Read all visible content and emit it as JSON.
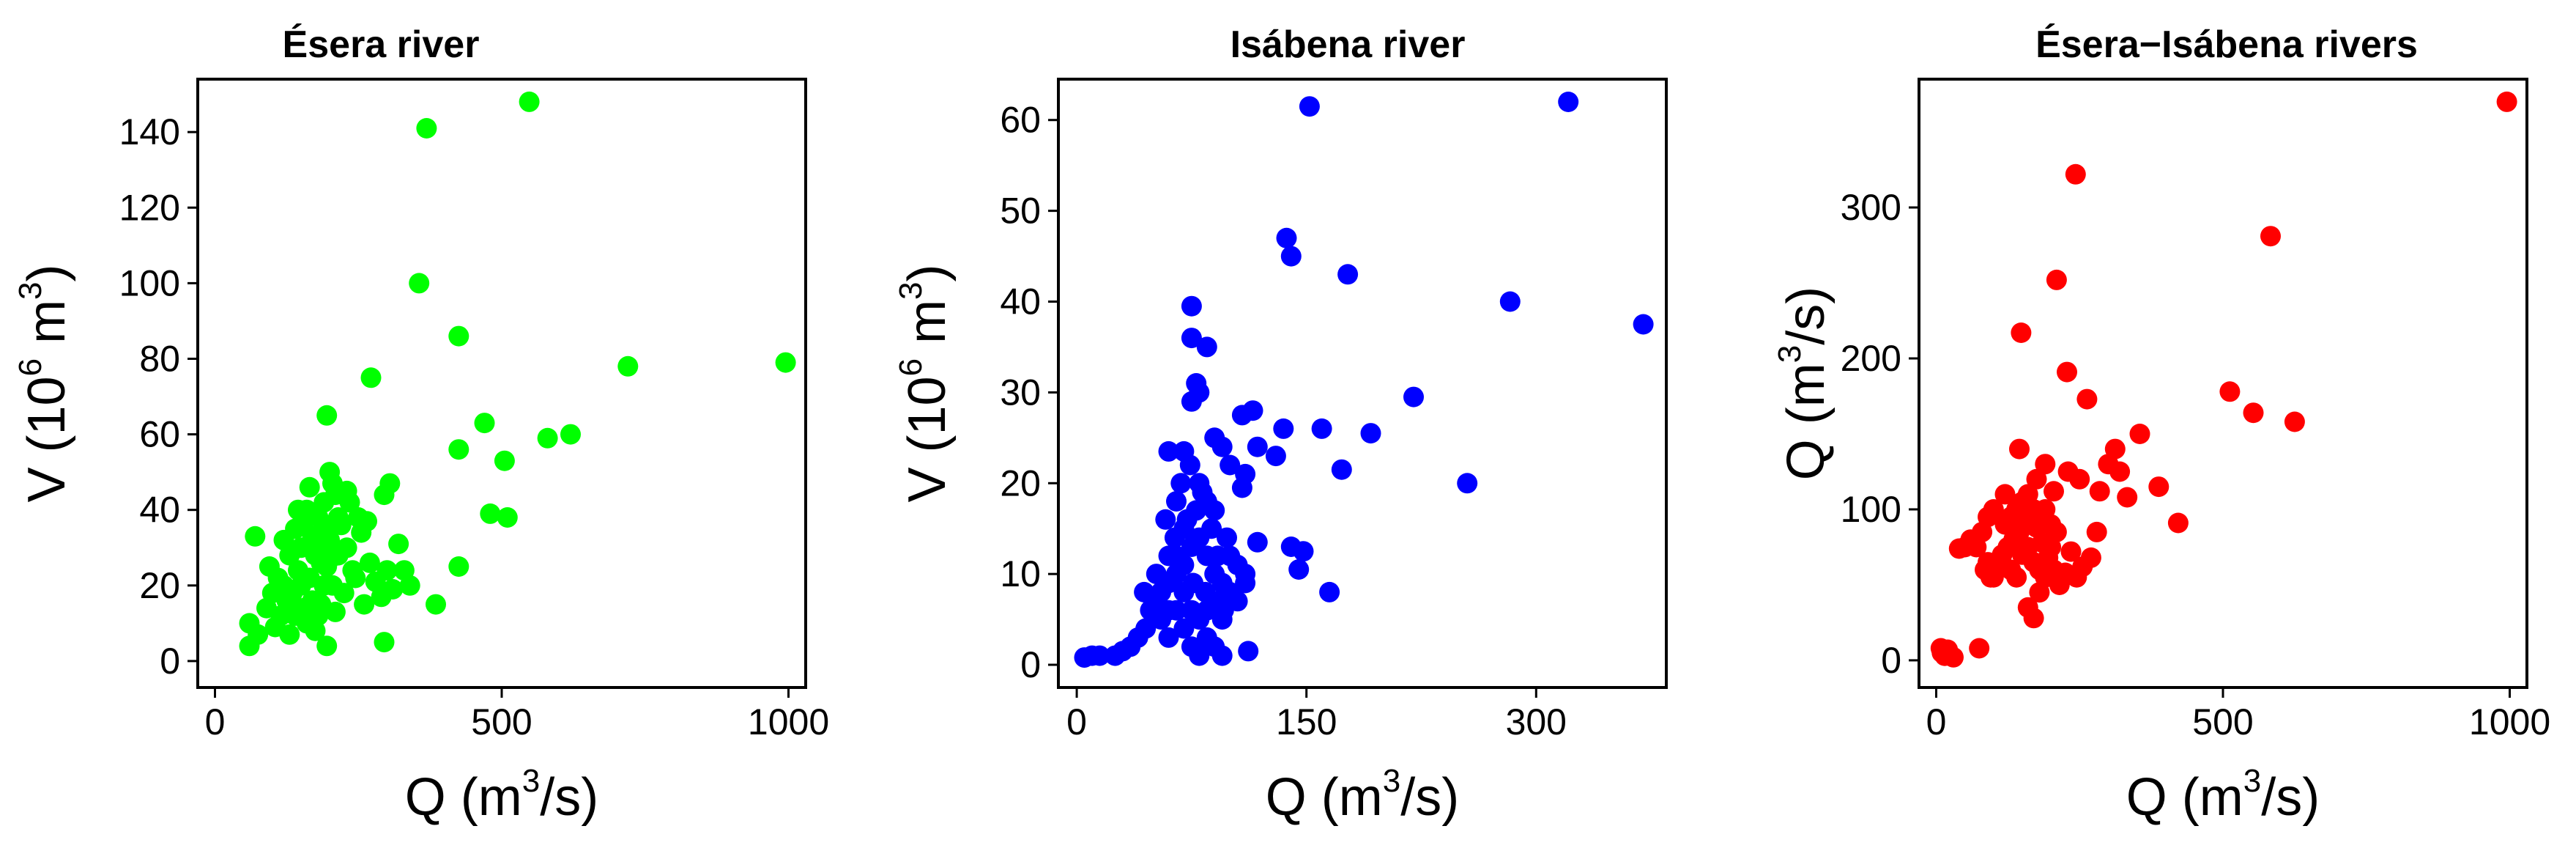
{
  "panels": [
    {
      "title": "Ésera river",
      "xlabel": {
        "pre": "Q (m",
        "sup": "3",
        "post": "/s)"
      },
      "ylabel": {
        "pre": "V (10",
        "sup1": "6",
        "mid": " m",
        "sup2": "3",
        "post": ")"
      }
    },
    {
      "title": "Isábena river",
      "xlabel": {
        "pre": "Q (m",
        "sup": "3",
        "post": "/s)"
      },
      "ylabel": {
        "pre": "V (10",
        "sup1": "6",
        "mid": " m",
        "sup2": "3",
        "post": ")"
      }
    },
    {
      "title": "Ésera−Isábena rivers",
      "xlabel": {
        "pre": "Q (m",
        "sup": "3",
        "post": "/s)"
      },
      "ylabel": {
        "pre": "Q (m",
        "sup1": "3",
        "mid": "",
        "sup2": "",
        "post": "/s)"
      }
    }
  ],
  "chart_data": [
    {
      "type": "scatter",
      "title": "Ésera river",
      "xlabel": "Q (m3/s)",
      "ylabel": "V (10^6 m3)",
      "xlim": [
        -30,
        1030
      ],
      "ylim": [
        -7,
        154
      ],
      "xticks": [
        0,
        500,
        1000
      ],
      "yticks": [
        0,
        20,
        40,
        60,
        80,
        100,
        120,
        140
      ],
      "color": "#00ff00",
      "grid": false,
      "points": [
        [
          548,
          148
        ],
        [
          369,
          141
        ],
        [
          356,
          100
        ],
        [
          425,
          86
        ],
        [
          272,
          75
        ],
        [
          995,
          79
        ],
        [
          720,
          78
        ],
        [
          620,
          60
        ],
        [
          580,
          59
        ],
        [
          470,
          63
        ],
        [
          505,
          53
        ],
        [
          425,
          56
        ],
        [
          480,
          39
        ],
        [
          510,
          38
        ],
        [
          195,
          65
        ],
        [
          200,
          50
        ],
        [
          425,
          25
        ],
        [
          385,
          15
        ],
        [
          305,
          47
        ],
        [
          295,
          44
        ],
        [
          235,
          42
        ],
        [
          250,
          38
        ],
        [
          320,
          31
        ],
        [
          330,
          24
        ],
        [
          340,
          20
        ],
        [
          295,
          5
        ],
        [
          195,
          4
        ],
        [
          70,
          33
        ],
        [
          60,
          10
        ],
        [
          60,
          4
        ],
        [
          75,
          7
        ],
        [
          90,
          14
        ],
        [
          105,
          9
        ],
        [
          115,
          12
        ],
        [
          120,
          20
        ],
        [
          130,
          28
        ],
        [
          135,
          18
        ],
        [
          140,
          35
        ],
        [
          145,
          24
        ],
        [
          150,
          30
        ],
        [
          155,
          14
        ],
        [
          160,
          40
        ],
        [
          165,
          22
        ],
        [
          170,
          33
        ],
        [
          175,
          28
        ],
        [
          180,
          38
        ],
        [
          185,
          15
        ],
        [
          190,
          42
        ],
        [
          195,
          25
        ],
        [
          200,
          32
        ],
        [
          205,
          20
        ],
        [
          210,
          44
        ],
        [
          215,
          28
        ],
        [
          220,
          36
        ],
        [
          225,
          18
        ],
        [
          230,
          30
        ],
        [
          240,
          24
        ],
        [
          245,
          22
        ],
        [
          255,
          34
        ],
        [
          260,
          15
        ],
        [
          270,
          26
        ],
        [
          280,
          21
        ],
        [
          290,
          17
        ],
        [
          300,
          24
        ],
        [
          310,
          19
        ],
        [
          150,
          20
        ],
        [
          160,
          10
        ],
        [
          175,
          8
        ],
        [
          185,
          26
        ],
        [
          190,
          20
        ],
        [
          140,
          12
        ],
        [
          125,
          16
        ],
        [
          110,
          22
        ],
        [
          100,
          18
        ],
        [
          95,
          25
        ],
        [
          165,
          46
        ],
        [
          205,
          47
        ],
        [
          215,
          38
        ],
        [
          170,
          16
        ],
        [
          130,
          7
        ],
        [
          180,
          12
        ],
        [
          195,
          35
        ],
        [
          210,
          13
        ],
        [
          145,
          40
        ],
        [
          230,
          45
        ],
        [
          265,
          37
        ],
        [
          120,
          32
        ],
        [
          155,
          37
        ],
        [
          185,
          30
        ],
        [
          200,
          27
        ]
      ]
    },
    {
      "type": "scatter",
      "title": "Isábena river",
      "xlabel": "Q (m3/s)",
      "ylabel": "V (10^6 m3)",
      "xlim": [
        -12,
        385
      ],
      "ylim": [
        -2.5,
        64.5
      ],
      "xticks": [
        0,
        150,
        300
      ],
      "yticks": [
        0,
        10,
        20,
        30,
        40,
        50,
        60
      ],
      "color": "#0000ff",
      "grid": false,
      "points": [
        [
          152,
          61.5
        ],
        [
          321,
          62
        ],
        [
          137,
          47
        ],
        [
          140,
          45
        ],
        [
          177,
          43
        ],
        [
          283,
          40
        ],
        [
          370,
          37.5
        ],
        [
          75,
          39.5
        ],
        [
          220,
          29.5
        ],
        [
          192,
          25.5
        ],
        [
          160,
          26
        ],
        [
          135,
          26
        ],
        [
          173,
          21.5
        ],
        [
          255,
          20
        ],
        [
          165,
          8
        ],
        [
          115,
          28
        ],
        [
          108,
          27.5
        ],
        [
          118,
          24
        ],
        [
          130,
          23
        ],
        [
          110,
          21
        ],
        [
          108,
          19.5
        ],
        [
          118,
          13.5
        ],
        [
          140,
          13
        ],
        [
          148,
          12.5
        ],
        [
          145,
          10.5
        ],
        [
          110,
          10
        ],
        [
          112,
          1.5
        ],
        [
          75,
          36
        ],
        [
          78,
          31
        ],
        [
          75,
          29
        ],
        [
          80,
          30
        ],
        [
          85,
          35
        ],
        [
          60,
          23.5
        ],
        [
          70,
          23.5
        ],
        [
          90,
          25
        ],
        [
          95,
          24
        ],
        [
          100,
          22
        ],
        [
          80,
          20
        ],
        [
          85,
          18
        ],
        [
          90,
          17
        ],
        [
          65,
          18
        ],
        [
          70,
          15
        ],
        [
          60,
          12
        ],
        [
          65,
          10
        ],
        [
          70,
          8
        ],
        [
          75,
          6
        ],
        [
          80,
          5
        ],
        [
          85,
          3
        ],
        [
          90,
          2
        ],
        [
          95,
          1
        ],
        [
          60,
          3
        ],
        [
          55,
          5
        ],
        [
          50,
          7
        ],
        [
          45,
          4
        ],
        [
          40,
          3
        ],
        [
          35,
          2
        ],
        [
          30,
          1.5
        ],
        [
          25,
          1
        ],
        [
          15,
          1
        ],
        [
          10,
          1
        ],
        [
          5,
          0.8
        ],
        [
          55,
          8
        ],
        [
          60,
          9
        ],
        [
          65,
          12
        ],
        [
          70,
          11
        ],
        [
          75,
          13
        ],
        [
          80,
          14
        ],
        [
          85,
          12
        ],
        [
          90,
          10
        ],
        [
          95,
          9
        ],
        [
          100,
          8
        ],
        [
          105,
          7
        ],
        [
          70,
          4
        ],
        [
          75,
          2
        ],
        [
          80,
          1
        ],
        [
          85,
          6
        ],
        [
          90,
          7
        ],
        [
          95,
          5
        ],
        [
          65,
          6
        ],
        [
          60,
          6
        ],
        [
          100,
          12
        ],
        [
          105,
          11
        ],
        [
          110,
          9
        ],
        [
          72,
          16
        ],
        [
          78,
          17
        ],
        [
          82,
          19
        ],
        [
          88,
          15
        ],
        [
          92,
          12
        ],
        [
          98,
          14
        ],
        [
          68,
          20
        ],
        [
          74,
          22
        ],
        [
          64,
          14
        ],
        [
          58,
          16
        ],
        [
          52,
          10
        ],
        [
          48,
          6
        ],
        [
          44,
          8
        ],
        [
          76,
          9
        ],
        [
          84,
          8
        ],
        [
          96,
          6
        ]
      ]
    },
    {
      "type": "scatter",
      "title": "Ésera−Isábena rivers",
      "xlabel": "Q (m3/s)",
      "ylabel": "Q (m3/s)",
      "xlim": [
        -30,
        1030
      ],
      "ylim": [
        -18,
        385
      ],
      "xticks": [
        0,
        500,
        1000
      ],
      "yticks": [
        0,
        100,
        200,
        300
      ],
      "color": "#ff0000",
      "grid": false,
      "points": [
        [
          995,
          370
        ],
        [
          243,
          322
        ],
        [
          583,
          281
        ],
        [
          210,
          252
        ],
        [
          148,
          217
        ],
        [
          512,
          178
        ],
        [
          553,
          164
        ],
        [
          625,
          158
        ],
        [
          263,
          173
        ],
        [
          228,
          191
        ],
        [
          355,
          150
        ],
        [
          312,
          140
        ],
        [
          388,
          115
        ],
        [
          333,
          108
        ],
        [
          422,
          91
        ],
        [
          285,
          112
        ],
        [
          250,
          120
        ],
        [
          230,
          125
        ],
        [
          205,
          112
        ],
        [
          190,
          130
        ],
        [
          175,
          120
        ],
        [
          145,
          140
        ],
        [
          120,
          110
        ],
        [
          100,
          100
        ],
        [
          90,
          95
        ],
        [
          80,
          85
        ],
        [
          70,
          75
        ],
        [
          60,
          80
        ],
        [
          50,
          75
        ],
        [
          40,
          74
        ],
        [
          85,
          60
        ],
        [
          95,
          55
        ],
        [
          105,
          65
        ],
        [
          115,
          70
        ],
        [
          125,
          75
        ],
        [
          135,
          80
        ],
        [
          145,
          85
        ],
        [
          155,
          90
        ],
        [
          165,
          95
        ],
        [
          175,
          88
        ],
        [
          185,
          78
        ],
        [
          195,
          68
        ],
        [
          205,
          60
        ],
        [
          215,
          50
        ],
        [
          225,
          58
        ],
        [
          235,
          72
        ],
        [
          245,
          55
        ],
        [
          255,
          62
        ],
        [
          270,
          68
        ],
        [
          280,
          85
        ],
        [
          160,
          35
        ],
        [
          170,
          28
        ],
        [
          180,
          45
        ],
        [
          140,
          55
        ],
        [
          130,
          60
        ],
        [
          110,
          65
        ],
        [
          100,
          55
        ],
        [
          90,
          65
        ],
        [
          120,
          90
        ],
        [
          130,
          95
        ],
        [
          140,
          100
        ],
        [
          150,
          105
        ],
        [
          160,
          110
        ],
        [
          170,
          100
        ],
        [
          180,
          95
        ],
        [
          190,
          100
        ],
        [
          200,
          90
        ],
        [
          210,
          85
        ],
        [
          150,
          70
        ],
        [
          160,
          75
        ],
        [
          170,
          65
        ],
        [
          180,
          60
        ],
        [
          190,
          55
        ],
        [
          200,
          75
        ],
        [
          75,
          8
        ],
        [
          20,
          7
        ],
        [
          15,
          3
        ],
        [
          10,
          5
        ],
        [
          30,
          2
        ],
        [
          8,
          8
        ],
        [
          300,
          130
        ],
        [
          320,
          125
        ]
      ]
    }
  ]
}
